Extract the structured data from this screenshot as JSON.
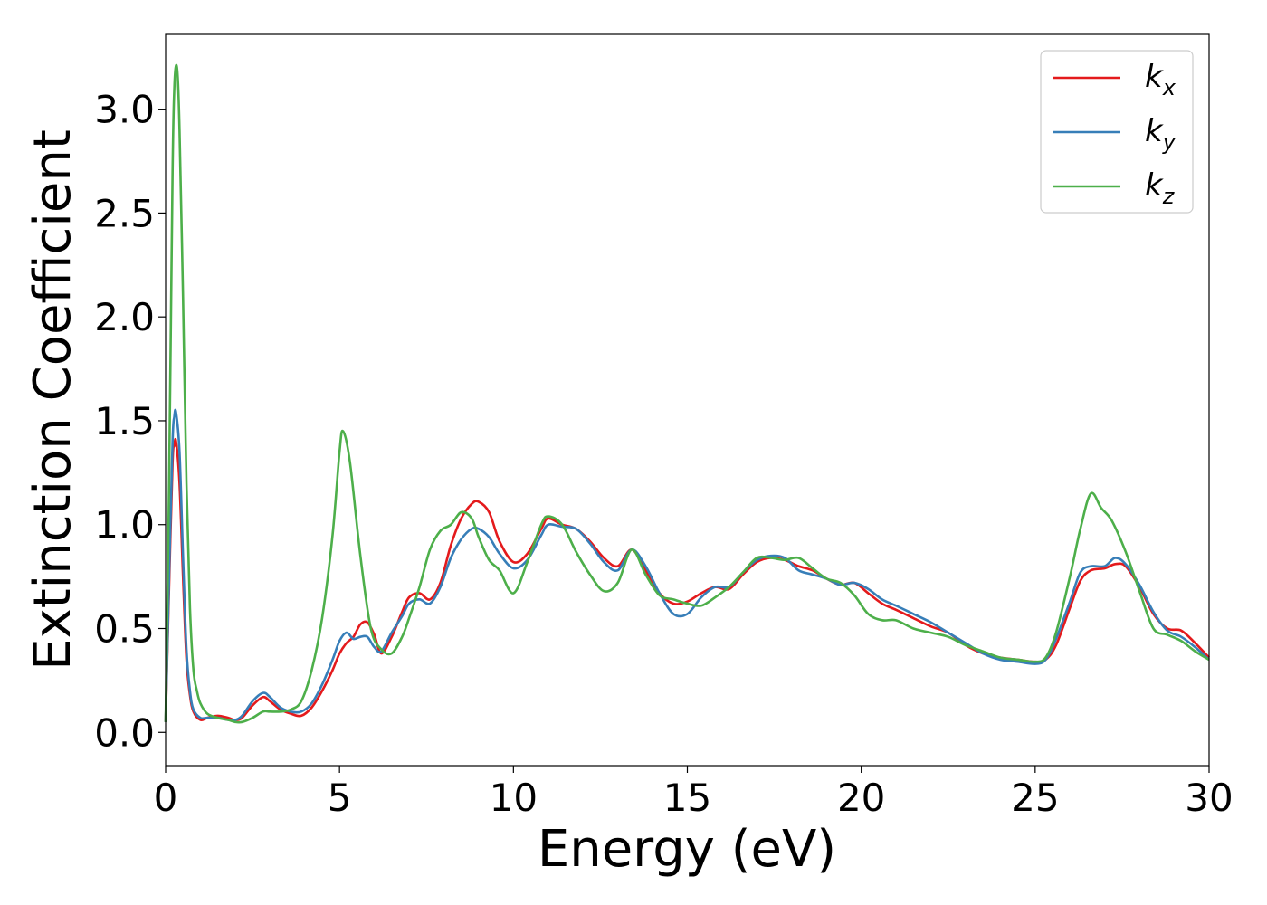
{
  "chart_data": {
    "type": "line",
    "xlabel": "Energy (eV)",
    "ylabel": "Extinction Coefficient",
    "xlim": [
      0,
      30
    ],
    "ylim": [
      -0.16,
      3.36
    ],
    "xticks": [
      0,
      5,
      10,
      15,
      20,
      25,
      30
    ],
    "xtick_labels": [
      "0",
      "5",
      "10",
      "15",
      "20",
      "25",
      "30"
    ],
    "yticks": [
      0.0,
      0.5,
      1.0,
      1.5,
      2.0,
      2.5,
      3.0
    ],
    "ytick_labels": [
      "0.0",
      "0.5",
      "1.0",
      "1.5",
      "2.0",
      "2.5",
      "3.0"
    ],
    "grid": false,
    "legend_position": "top-right",
    "series": [
      {
        "name": "k_x",
        "label_main": "k",
        "label_sub": "x",
        "color": "#e41a1c",
        "x": [
          0,
          0.1,
          0.2,
          0.25,
          0.3,
          0.4,
          0.5,
          0.6,
          0.7,
          0.8,
          1.0,
          1.2,
          1.5,
          1.8,
          2.0,
          2.2,
          2.5,
          2.8,
          3.0,
          3.3,
          3.6,
          3.9,
          4.2,
          4.5,
          4.8,
          5.0,
          5.2,
          5.4,
          5.6,
          5.8,
          6.0,
          6.2,
          6.5,
          6.8,
          7.0,
          7.3,
          7.6,
          7.9,
          8.2,
          8.5,
          8.8,
          9.0,
          9.3,
          9.6,
          10.0,
          10.4,
          10.8,
          11.0,
          11.4,
          11.8,
          12.2,
          12.6,
          13.0,
          13.4,
          13.8,
          14.2,
          14.6,
          15.0,
          15.4,
          15.8,
          16.2,
          16.6,
          17.0,
          17.4,
          17.8,
          18.2,
          18.6,
          19.0,
          19.4,
          19.8,
          20.2,
          20.6,
          21.0,
          21.5,
          22.0,
          22.5,
          23.0,
          23.5,
          24.0,
          24.5,
          25.0,
          25.3,
          25.6,
          26.0,
          26.3,
          26.6,
          27.0,
          27.3,
          27.6,
          28.0,
          28.4,
          28.8,
          29.2,
          29.6,
          30.0
        ],
        "y": [
          0.05,
          0.7,
          1.3,
          1.38,
          1.4,
          1.2,
          0.75,
          0.35,
          0.18,
          0.1,
          0.06,
          0.07,
          0.08,
          0.07,
          0.06,
          0.07,
          0.13,
          0.17,
          0.15,
          0.11,
          0.09,
          0.08,
          0.12,
          0.2,
          0.3,
          0.38,
          0.43,
          0.46,
          0.52,
          0.53,
          0.47,
          0.38,
          0.46,
          0.58,
          0.65,
          0.67,
          0.64,
          0.72,
          0.9,
          1.03,
          1.1,
          1.11,
          1.06,
          0.92,
          0.82,
          0.86,
          0.98,
          1.03,
          1.0,
          0.98,
          0.92,
          0.84,
          0.8,
          0.88,
          0.78,
          0.67,
          0.62,
          0.63,
          0.67,
          0.7,
          0.69,
          0.76,
          0.82,
          0.84,
          0.83,
          0.8,
          0.78,
          0.74,
          0.71,
          0.72,
          0.67,
          0.62,
          0.59,
          0.55,
          0.51,
          0.48,
          0.42,
          0.38,
          0.36,
          0.35,
          0.34,
          0.35,
          0.42,
          0.6,
          0.73,
          0.78,
          0.79,
          0.81,
          0.8,
          0.7,
          0.57,
          0.5,
          0.49,
          0.43,
          0.36
        ]
      },
      {
        "name": "k_y",
        "label_main": "k",
        "label_sub": "y",
        "color": "#377eb8",
        "x": [
          0,
          0.1,
          0.2,
          0.25,
          0.3,
          0.4,
          0.5,
          0.6,
          0.7,
          0.8,
          1.0,
          1.2,
          1.5,
          1.8,
          2.0,
          2.2,
          2.5,
          2.8,
          3.0,
          3.3,
          3.6,
          3.9,
          4.2,
          4.5,
          4.8,
          5.0,
          5.2,
          5.4,
          5.6,
          5.8,
          6.0,
          6.2,
          6.5,
          6.8,
          7.0,
          7.3,
          7.6,
          7.9,
          8.2,
          8.5,
          8.8,
          9.0,
          9.3,
          9.6,
          10.0,
          10.4,
          10.8,
          11.0,
          11.4,
          11.8,
          12.2,
          12.6,
          13.0,
          13.4,
          13.8,
          14.2,
          14.6,
          15.0,
          15.4,
          15.8,
          16.2,
          16.6,
          17.0,
          17.4,
          17.8,
          18.2,
          18.6,
          19.0,
          19.4,
          19.8,
          20.2,
          20.6,
          21.0,
          21.5,
          22.0,
          22.5,
          23.0,
          23.5,
          24.0,
          24.5,
          25.0,
          25.3,
          25.6,
          26.0,
          26.3,
          26.6,
          27.0,
          27.3,
          27.6,
          28.0,
          28.4,
          28.8,
          29.2,
          29.6,
          30.0
        ],
        "y": [
          0.05,
          0.75,
          1.4,
          1.52,
          1.54,
          1.35,
          0.85,
          0.4,
          0.2,
          0.11,
          0.07,
          0.07,
          0.07,
          0.06,
          0.06,
          0.08,
          0.15,
          0.19,
          0.17,
          0.12,
          0.1,
          0.1,
          0.14,
          0.23,
          0.35,
          0.44,
          0.48,
          0.45,
          0.46,
          0.46,
          0.41,
          0.39,
          0.48,
          0.56,
          0.62,
          0.64,
          0.62,
          0.7,
          0.84,
          0.93,
          0.98,
          0.98,
          0.94,
          0.86,
          0.79,
          0.83,
          0.95,
          1.0,
          0.99,
          0.98,
          0.91,
          0.82,
          0.78,
          0.88,
          0.8,
          0.67,
          0.57,
          0.57,
          0.65,
          0.7,
          0.7,
          0.77,
          0.83,
          0.85,
          0.84,
          0.78,
          0.76,
          0.74,
          0.71,
          0.72,
          0.69,
          0.64,
          0.61,
          0.57,
          0.53,
          0.48,
          0.43,
          0.38,
          0.35,
          0.34,
          0.33,
          0.35,
          0.45,
          0.63,
          0.77,
          0.8,
          0.8,
          0.84,
          0.81,
          0.71,
          0.58,
          0.49,
          0.46,
          0.41,
          0.35
        ]
      },
      {
        "name": "k_z",
        "label_main": "k",
        "label_sub": "z",
        "color": "#4daf4a",
        "x": [
          0,
          0.1,
          0.2,
          0.25,
          0.3,
          0.35,
          0.4,
          0.5,
          0.6,
          0.7,
          0.8,
          0.9,
          1.0,
          1.2,
          1.5,
          1.8,
          2.0,
          2.2,
          2.5,
          2.8,
          3.0,
          3.3,
          3.6,
          3.9,
          4.2,
          4.5,
          4.8,
          5.0,
          5.1,
          5.3,
          5.6,
          5.9,
          6.2,
          6.5,
          6.8,
          7.0,
          7.3,
          7.6,
          7.9,
          8.2,
          8.5,
          8.8,
          9.0,
          9.3,
          9.6,
          10.0,
          10.4,
          10.8,
          11.0,
          11.4,
          11.8,
          12.2,
          12.6,
          13.0,
          13.4,
          13.8,
          14.2,
          14.6,
          15.0,
          15.4,
          15.8,
          16.2,
          16.6,
          17.0,
          17.4,
          17.8,
          18.2,
          18.6,
          19.0,
          19.4,
          19.8,
          20.2,
          20.6,
          21.0,
          21.5,
          22.0,
          22.5,
          23.0,
          23.5,
          24.0,
          24.5,
          25.0,
          25.3,
          25.6,
          26.0,
          26.3,
          26.6,
          26.9,
          27.2,
          27.6,
          28.0,
          28.4,
          28.8,
          29.2,
          29.6,
          30.0
        ],
        "y": [
          0.05,
          1.2,
          2.7,
          3.1,
          3.21,
          3.15,
          2.9,
          2.1,
          1.2,
          0.6,
          0.3,
          0.2,
          0.14,
          0.09,
          0.07,
          0.06,
          0.05,
          0.05,
          0.07,
          0.1,
          0.1,
          0.1,
          0.11,
          0.15,
          0.3,
          0.55,
          0.95,
          1.35,
          1.45,
          1.3,
          0.85,
          0.5,
          0.4,
          0.38,
          0.46,
          0.55,
          0.7,
          0.88,
          0.97,
          1.0,
          1.06,
          1.03,
          0.94,
          0.83,
          0.78,
          0.67,
          0.82,
          1.0,
          1.04,
          1.0,
          0.87,
          0.76,
          0.68,
          0.72,
          0.88,
          0.76,
          0.66,
          0.64,
          0.62,
          0.61,
          0.65,
          0.7,
          0.77,
          0.84,
          0.84,
          0.83,
          0.84,
          0.79,
          0.74,
          0.72,
          0.66,
          0.57,
          0.54,
          0.54,
          0.5,
          0.48,
          0.46,
          0.42,
          0.39,
          0.36,
          0.35,
          0.34,
          0.36,
          0.48,
          0.75,
          0.98,
          1.15,
          1.08,
          1.02,
          0.87,
          0.68,
          0.5,
          0.47,
          0.44,
          0.39,
          0.35
        ]
      }
    ]
  }
}
